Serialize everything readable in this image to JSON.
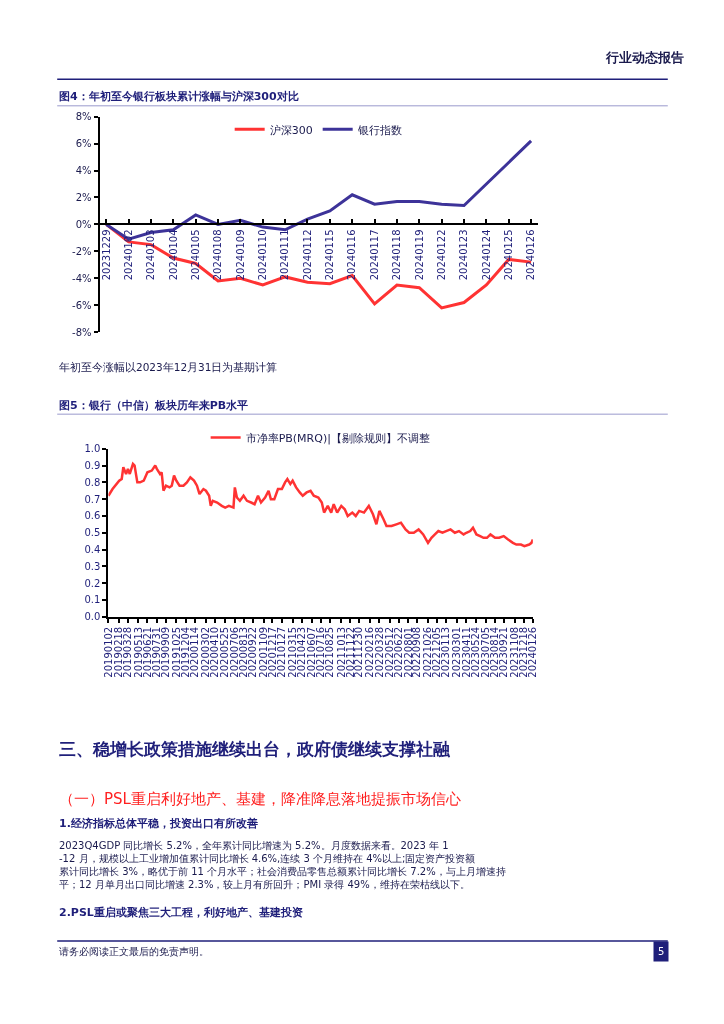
{
  "chart_data": [
    {
      "type": "line",
      "title": "图4：年初至今银行板块累计涨幅与沪深300对比",
      "annotations": [
        "行业动态报告",
        "年初至今涨幅以2023年12月31日为基期计算"
      ],
      "categories": [
        "20231229",
        "20240102",
        "20240103",
        "20240104",
        "20240105",
        "20240108",
        "20240109",
        "20240110",
        "20240111",
        "20240112",
        "20240115",
        "20240116",
        "20240117",
        "20240118",
        "20240119",
        "20240122",
        "20240123",
        "20240124",
        "20240125",
        "20240126"
      ],
      "series": [
        {
          "name": "沪深300",
          "color": "#ff3333",
          "values": [
            0,
            -1.3,
            -1.5,
            -2.5,
            -2.9,
            -4.2,
            -4.0,
            -4.5,
            -3.9,
            -4.3,
            -4.4,
            -3.8,
            -5.9,
            -4.5,
            -4.7,
            -6.2,
            -5.8,
            -4.5,
            -2.6,
            -2.8
          ]
        },
        {
          "name": "银行指数",
          "color": "#3d3399",
          "values": [
            0,
            -1.1,
            -0.6,
            -0.4,
            0.7,
            0.0,
            0.3,
            -0.2,
            -0.4,
            0.4,
            1.0,
            2.2,
            1.5,
            1.7,
            1.7,
            1.5,
            1.4,
            3.0,
            4.6,
            6.2
          ]
        }
      ],
      "ylim": [
        -8,
        8
      ],
      "yticks": [
        {
          "value": -8,
          "label": "-8%"
        },
        {
          "value": -6,
          "label": "-6%"
        },
        {
          "value": -4,
          "label": "-4%"
        },
        {
          "value": -2,
          "label": "-2%"
        },
        {
          "value": 0,
          "label": "0%"
        },
        {
          "value": 2,
          "label": "2%"
        },
        {
          "value": 4,
          "label": "4%"
        },
        {
          "value": 6,
          "label": "6%"
        },
        {
          "value": 8,
          "label": "8%"
        }
      ],
      "grid": false,
      "legend": "top",
      "marker": "none",
      "line_style": "solid"
    },
    {
      "type": "line",
      "title": "图5：银行（中信）板块历年来PB水平",
      "annotations": [
        "三、稳增长政策措施继续出台，政府债继续支撑社融",
        "（一）PSL重启利好地产、基建，降准降息落地提振市场信心",
        "1.经济指标总体平稳，投资出口有所改善",
        "2023Q4GDP 同比增长 5.2%，全年累计同比增速为 5.2%。月度数据来看。2023 年 1-12 月，规模以上工业增加值累计同比增长 4.6%,连续 3 个月维持在 4%以上;固定资产投资额累计同比增长 3%，略优于前 11 个月水平；社会消费品零售总额累计同比增长 7.2%，与上月增速持平；12 月单月出口同比增速 2.3%，较上月有所回升；PMI 录得 49%，维持在荣枯线以下。",
        "2.PSL重启或聚焦三大工程，利好地产、基建投资",
        "请务必阅读正文最后的免责声明。",
        "5"
      ],
      "x": [
        "2019-01-02",
        "2019-01-20",
        "2019-02-18",
        "2019-03-01",
        "2019-03-08",
        "2019-03-20",
        "2019-03-28",
        "2019-04-05",
        "2019-04-19",
        "2019-04-26",
        "2019-05-08",
        "2019-05-20",
        "2019-06-05",
        "2019-06-21",
        "2019-07-10",
        "2019-07-25",
        "2019-08-01",
        "2019-08-15",
        "2019-08-22",
        "2019-08-30",
        "2019-09-10",
        "2019-09-25",
        "2019-10-05",
        "2019-10-15",
        "2019-10-25",
        "2019-11-08",
        "2019-11-25",
        "2019-12-10",
        "2019-12-25",
        "2020-01-10",
        "2020-01-23",
        "2020-02-03",
        "2020-02-20",
        "2020-03-02",
        "2020-03-16",
        "2020-03-23",
        "2020-04-01",
        "2020-04-20",
        "2020-05-10",
        "2020-05-25",
        "2020-06-10",
        "2020-06-30",
        "2020-07-06",
        "2020-07-15",
        "2020-07-28",
        "2020-08-13",
        "2020-08-28",
        "2020-09-15",
        "2020-09-30",
        "2020-10-15",
        "2020-10-28",
        "2020-11-15",
        "2020-11-30",
        "2020-12-10",
        "2020-12-25",
        "2021-01-10",
        "2021-01-27",
        "2021-02-10",
        "2021-02-20",
        "2021-03-05",
        "2021-03-15",
        "2021-03-30",
        "2021-04-15",
        "2021-04-28",
        "2021-05-15",
        "2021-06-01",
        "2021-06-15",
        "2021-07-05",
        "2021-07-20",
        "2021-07-30",
        "2021-08-15",
        "2021-08-30",
        "2021-09-10",
        "2021-09-25",
        "2021-10-13",
        "2021-10-28",
        "2021-11-10",
        "2021-11-30",
        "2021-12-15",
        "2021-12-30",
        "2022-01-20",
        "2022-02-10",
        "2022-02-28",
        "2022-03-15",
        "2022-03-28",
        "2022-04-15",
        "2022-04-28",
        "2022-05-20",
        "2022-06-10",
        "2022-06-30",
        "2022-07-20",
        "2022-08-05",
        "2022-08-25",
        "2022-09-15",
        "2022-10-05",
        "2022-10-26",
        "2022-11-10",
        "2022-11-25",
        "2022-12-10",
        "2022-12-28",
        "2023-01-13",
        "2023-02-01",
        "2023-02-20",
        "2023-03-10",
        "2023-03-30",
        "2023-04-11",
        "2023-04-28",
        "2023-05-10",
        "2023-05-25",
        "2023-06-10",
        "2023-06-25",
        "2023-07-10",
        "2023-07-25",
        "2023-08-14",
        "2023-09-01",
        "2023-09-21",
        "2023-10-10",
        "2023-10-31",
        "2023-11-15",
        "2023-12-05",
        "2023-12-20",
        "2024-01-10",
        "2024-01-20",
        "2024-01-26"
      ],
      "series": [
        {
          "name": "市净率PB(MRQ)|【剔除规则】不调整",
          "color": "#ff3333",
          "values": [
            0.72,
            0.76,
            0.81,
            0.82,
            0.89,
            0.85,
            0.88,
            0.85,
            0.91,
            0.9,
            0.8,
            0.8,
            0.81,
            0.86,
            0.87,
            0.9,
            0.88,
            0.85,
            0.86,
            0.75,
            0.78,
            0.77,
            0.78,
            0.84,
            0.81,
            0.78,
            0.78,
            0.8,
            0.83,
            0.81,
            0.78,
            0.73,
            0.76,
            0.75,
            0.72,
            0.66,
            0.69,
            0.68,
            0.66,
            0.65,
            0.66,
            0.65,
            0.77,
            0.71,
            0.69,
            0.72,
            0.69,
            0.68,
            0.67,
            0.72,
            0.68,
            0.71,
            0.75,
            0.7,
            0.7,
            0.76,
            0.76,
            0.8,
            0.82,
            0.79,
            0.81,
            0.77,
            0.74,
            0.72,
            0.74,
            0.75,
            0.72,
            0.71,
            0.68,
            0.62,
            0.66,
            0.62,
            0.67,
            0.62,
            0.66,
            0.64,
            0.6,
            0.62,
            0.6,
            0.63,
            0.62,
            0.66,
            0.61,
            0.55,
            0.63,
            0.58,
            0.54,
            0.54,
            0.55,
            0.56,
            0.52,
            0.5,
            0.5,
            0.52,
            0.49,
            0.44,
            0.47,
            0.49,
            0.51,
            0.5,
            0.51,
            0.52,
            0.5,
            0.51,
            0.49,
            0.5,
            0.51,
            0.53,
            0.49,
            0.48,
            0.47,
            0.47,
            0.49,
            0.47,
            0.47,
            0.48,
            0.46,
            0.44,
            0.43,
            0.43,
            0.42,
            0.43,
            0.44,
            0.46
          ]
        }
      ],
      "xlim": [
        "2019-01-02",
        "2024-01-26"
      ],
      "xticks": [
        {
          "value": "2019-01-02",
          "label": "20190102"
        },
        {
          "value": "2019-02-18",
          "label": "20190218"
        },
        {
          "value": "2019-03-28",
          "label": "20190328"
        },
        {
          "value": "2019-05-13",
          "label": "20190513"
        },
        {
          "value": "2019-06-21",
          "label": "20190621"
        },
        {
          "value": "2019-07-31",
          "label": "20190731"
        },
        {
          "value": "2019-09-09",
          "label": "20190909"
        },
        {
          "value": "2019-10-25",
          "label": "20191025"
        },
        {
          "value": "2019-12-04",
          "label": "20191204"
        },
        {
          "value": "2020-01-14",
          "label": "20200114"
        },
        {
          "value": "2020-03-02",
          "label": "20200302"
        },
        {
          "value": "2020-04-10",
          "label": "20200410"
        },
        {
          "value": "2020-05-25",
          "label": "20200525"
        },
        {
          "value": "2020-07-06",
          "label": "20200706"
        },
        {
          "value": "2020-08-13",
          "label": "20200813"
        },
        {
          "value": "2020-09-22",
          "label": "20200922"
        },
        {
          "value": "2020-11-09",
          "label": "20201109"
        },
        {
          "value": "2020-12-17",
          "label": "20201217"
        },
        {
          "value": "2021-01-27",
          "label": "20210127"
        },
        {
          "value": "2021-03-15",
          "label": "20210315"
        },
        {
          "value": "2021-04-23",
          "label": "20210423"
        },
        {
          "value": "2021-06-07",
          "label": "20210607"
        },
        {
          "value": "2021-07-16",
          "label": "20210716"
        },
        {
          "value": "2021-08-25",
          "label": "20210825"
        },
        {
          "value": "2021-10-13",
          "label": "20211013"
        },
        {
          "value": "2021-11-22",
          "label": "20211122"
        },
        {
          "value": "2021-12-30",
          "label": "20211230"
        },
        {
          "value": "2022-02-16",
          "label": "20220216"
        },
        {
          "value": "2022-03-28",
          "label": "20220328"
        },
        {
          "value": "2022-05-12",
          "label": "20220512"
        },
        {
          "value": "2022-06-22",
          "label": "20220622"
        },
        {
          "value": "2022-08-01",
          "label": "20220801"
        },
        {
          "value": "2022-09-08",
          "label": "20220908"
        },
        {
          "value": "2022-10-26",
          "label": "20221026"
        },
        {
          "value": "2022-12-05",
          "label": "20221205"
        },
        {
          "value": "2023-01-13",
          "label": "20230113"
        },
        {
          "value": "2023-03-01",
          "label": "20230301"
        },
        {
          "value": "2023-04-11",
          "label": "20230411"
        },
        {
          "value": "2023-05-24",
          "label": "20230524"
        },
        {
          "value": "2023-07-05",
          "label": "20230705"
        },
        {
          "value": "2023-08-14",
          "label": "20230814"
        },
        {
          "value": "2023-09-21",
          "label": "20230921"
        },
        {
          "value": "2023-11-08",
          "label": "20231108"
        },
        {
          "value": "2023-12-18",
          "label": "20231218"
        },
        {
          "value": "2024-01-26",
          "label": "20240126"
        }
      ],
      "ylim": [
        0,
        1.0
      ],
      "yticks": [
        {
          "value": 0,
          "label": "0.0"
        },
        0.1,
        0.2,
        0.3,
        0.4,
        0.5,
        0.6,
        0.7,
        0.8,
        0.9,
        {
          "value": 1.0,
          "label": "1.0"
        }
      ],
      "grid": false,
      "legend": "top",
      "marker": "none",
      "line_style": "solid"
    }
  ]
}
